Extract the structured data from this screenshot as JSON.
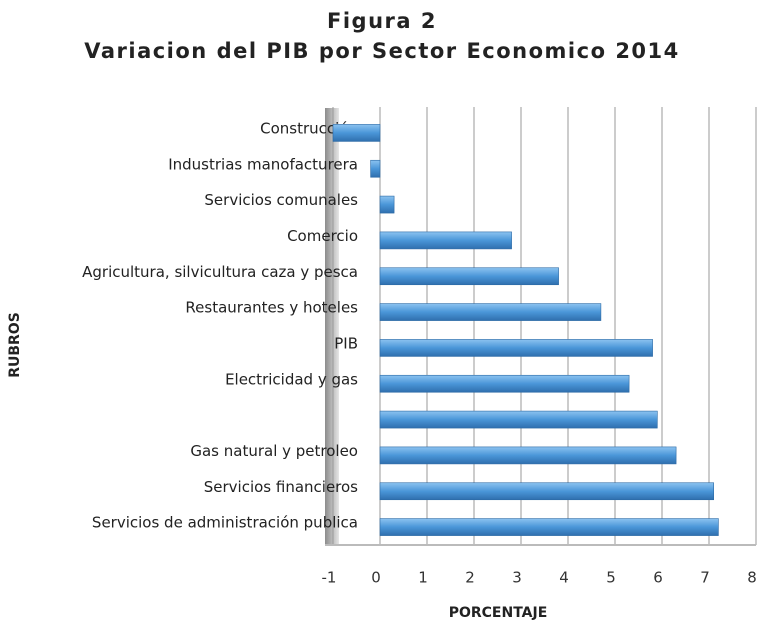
{
  "chart_data": {
    "type": "bar",
    "orientation": "horizontal",
    "title": "Figura 2",
    "subtitle": "Variacion del PIB  por Sector Economico 2014",
    "xlabel": "PORCENTAJE",
    "ylabel": "RUBROS",
    "categories": [
      "Construcción",
      "Industrias manofacturera",
      "Servicios comunales",
      "Comercio",
      "Agricultura, silvicultura caza y pesca",
      "Restaurantes y hoteles",
      "PIB",
      "Electricidad y gas",
      null,
      "Gas natural y petroleo",
      "Servicios financieros",
      "Servicios de administración publica"
    ],
    "values": [
      -1.0,
      -0.2,
      0.3,
      2.8,
      3.8,
      4.7,
      5.8,
      5.3,
      5.9,
      6.3,
      7.1,
      7.2
    ],
    "color": "#4a96d8",
    "xlim": [
      -1,
      8
    ],
    "xticks": [
      -1,
      0,
      1,
      2,
      3,
      4,
      5,
      6,
      7,
      8
    ],
    "grid": true
  }
}
